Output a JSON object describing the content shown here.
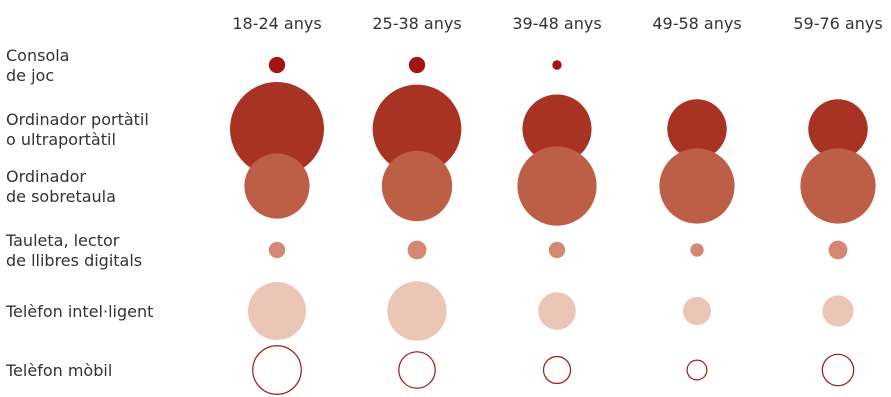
{
  "chart_data": {
    "type": "bubble-matrix",
    "title": "",
    "columns": [
      "18-24 anys",
      "25-38 anys",
      "39-48 anys",
      "49-58 anys",
      "59-76 anys"
    ],
    "rows": [
      {
        "label_lines": [
          "Consola",
          "de joc"
        ],
        "style": "filled",
        "color": "#a2140f",
        "values": [
          3,
          3,
          1,
          0,
          0
        ]
      },
      {
        "label_lines": [
          "Ordinador portàtil",
          "o ultraportàtil"
        ],
        "style": "filled",
        "color": "#a83224",
        "values": [
          100,
          89,
          54,
          40,
          40
        ]
      },
      {
        "label_lines": [
          "Ordinador",
          "de sobretaula"
        ],
        "style": "filled",
        "color": "#bd5e47",
        "values": [
          48,
          56,
          71,
          64,
          64
        ]
      },
      {
        "label_lines": [
          "Tauleta, lector",
          "de llibres digitals"
        ],
        "style": "filled",
        "color": "#d48772",
        "values": [
          3,
          4,
          3,
          2,
          4
        ]
      },
      {
        "label_lines": [
          "Telèfon intel·ligent"
        ],
        "style": "filled",
        "color": "#ebc6b7",
        "values": [
          38,
          40,
          16,
          9,
          11
        ]
      },
      {
        "label_lines": [
          "Telèfon mòbil"
        ],
        "style": "outline",
        "color": "#a2140f",
        "values": [
          28,
          16,
          9,
          5,
          12
        ]
      }
    ]
  }
}
